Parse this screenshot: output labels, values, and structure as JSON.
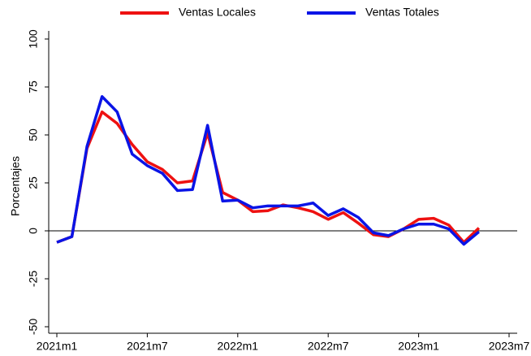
{
  "chart_data": {
    "type": "line",
    "y_label": "Porcentajes",
    "x": [
      "2021m1",
      "2021m2",
      "2021m3",
      "2021m4",
      "2021m5",
      "2021m6",
      "2021m7",
      "2021m8",
      "2021m9",
      "2021m10",
      "2021m11",
      "2021m12",
      "2022m1",
      "2022m2",
      "2022m3",
      "2022m4",
      "2022m5",
      "2022m6",
      "2022m7",
      "2022m8",
      "2022m9",
      "2022m10",
      "2022m11",
      "2022m12",
      "2023m1",
      "2023m2",
      "2023m3",
      "2023m4",
      "2023m5"
    ],
    "series": [
      {
        "name": "Ventas Locales",
        "color": "#ee1111",
        "values": [
          -6,
          -3,
          43,
          62,
          56,
          45,
          36,
          32,
          25,
          26,
          51,
          20,
          16,
          10,
          10.5,
          13.5,
          12,
          10,
          6,
          9.5,
          4,
          -2,
          -3,
          1,
          6,
          6.5,
          3,
          -6,
          1.5
        ]
      },
      {
        "name": "Ventas Totales",
        "color": "#0a14e6",
        "values": [
          -6,
          -3,
          44,
          70,
          62,
          40,
          34,
          30,
          21,
          21.5,
          55,
          15.5,
          16,
          12,
          13,
          13,
          13,
          14.5,
          8,
          11.5,
          7,
          -1,
          -2.5,
          1,
          3.5,
          3.5,
          1,
          -7,
          -0.5
        ]
      }
    ],
    "xlim": [
      "2021m1",
      "2023m7"
    ],
    "xticks": [
      "2021m1",
      "2021m7",
      "2022m1",
      "2022m7",
      "2023m1",
      "2023m7"
    ],
    "ylim": [
      -50,
      100
    ],
    "yticks": [
      -50,
      -25,
      0,
      25,
      50,
      75,
      100
    ],
    "zero_line": true,
    "legend": "top"
  }
}
